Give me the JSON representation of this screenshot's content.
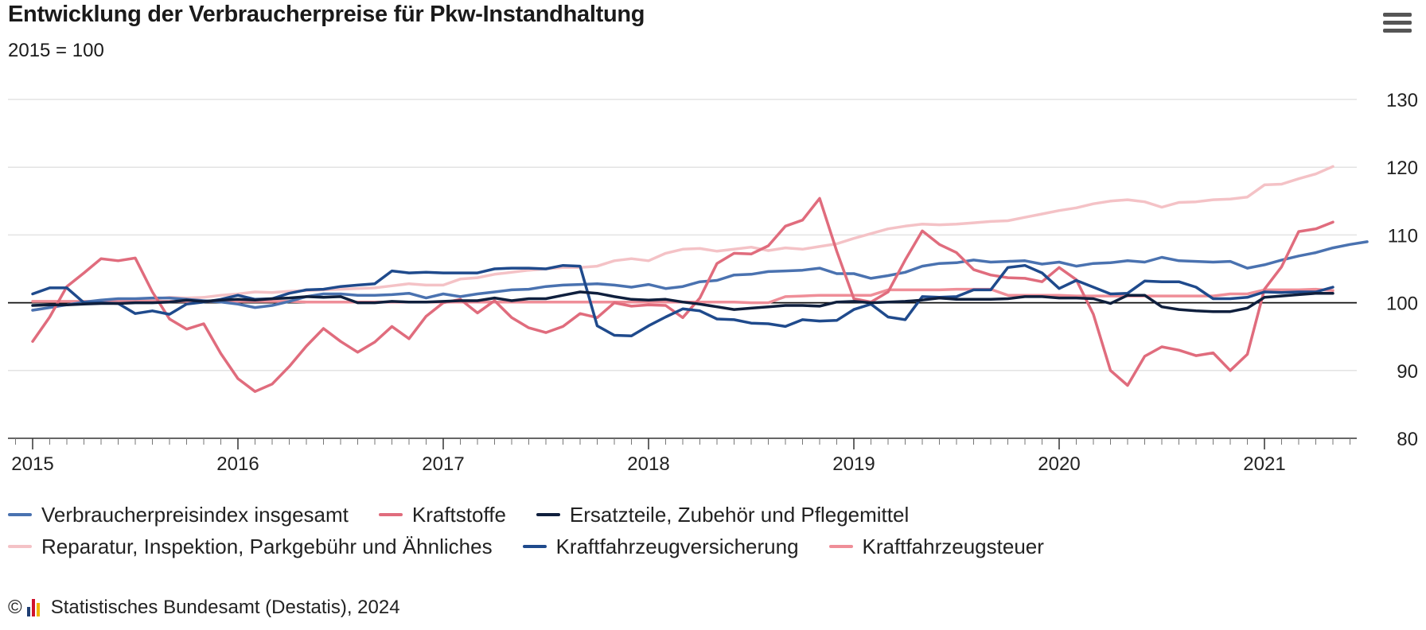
{
  "header": {
    "title": "Entwicklung der Verbraucherpreise für Pkw-Instandhaltung",
    "subtitle": "2015 = 100",
    "menu_icon": "hamburger-menu-icon"
  },
  "footer": {
    "copyright_symbol": "©",
    "logo_icon": "destatis-logo-icon",
    "source": "Statistisches Bundesamt (Destatis), 2024"
  },
  "chart_data": {
    "type": "line",
    "title": "Entwicklung der Verbraucherpreise für Pkw-Instandhaltung",
    "subtitle": "2015 = 100",
    "x_type": "monthly",
    "x_start": "2015-01",
    "x_ticks": [
      "2015",
      "2016",
      "2017",
      "2018",
      "2019",
      "2020",
      "2021"
    ],
    "y_ticks": [
      80,
      90,
      100,
      110,
      120,
      130
    ],
    "ylim": [
      80,
      130
    ],
    "y_axis_position": "right",
    "reference_line": 100,
    "grid": "horizontal",
    "legend_position": "bottom",
    "series": [
      {
        "name": "Verbraucherpreisindex insgesamt",
        "color": "#4a72b0",
        "values": [
          98.9,
          99.3,
          99.7,
          100.1,
          100.4,
          100.6,
          100.6,
          100.7,
          100.7,
          100.5,
          100.3,
          100.1,
          99.8,
          99.3,
          99.6,
          100.2,
          100.9,
          101.3,
          101.3,
          101.1,
          101.1,
          101.2,
          101.4,
          100.7,
          101.3,
          100.9,
          101.3,
          101.6,
          101.9,
          102.0,
          102.4,
          102.6,
          102.7,
          102.8,
          102.6,
          102.3,
          102.7,
          102.1,
          102.4,
          103.1,
          103.3,
          104.1,
          104.2,
          104.6,
          104.7,
          104.8,
          105.1,
          104.3,
          104.3,
          103.6,
          104.0,
          104.5,
          105.4,
          105.8,
          105.9,
          106.3,
          106.0,
          106.1,
          106.2,
          105.7,
          106.0,
          105.4,
          105.8,
          105.9,
          106.2,
          106.0,
          106.7,
          106.2,
          106.1,
          106.0,
          106.1,
          105.1,
          105.6,
          106.3,
          106.9,
          107.4,
          108.1,
          108.6,
          109.0
        ]
      },
      {
        "name": "Kraftstoffe",
        "color": "#e06c7d",
        "values": [
          94.3,
          97.9,
          102.4,
          104.4,
          106.5,
          106.2,
          106.6,
          101.6,
          97.6,
          96.1,
          96.9,
          92.5,
          88.8,
          86.9,
          88.0,
          90.6,
          93.6,
          96.2,
          94.3,
          92.7,
          94.2,
          96.5,
          94.7,
          98.0,
          100.0,
          100.5,
          98.5,
          100.3,
          97.8,
          96.3,
          95.6,
          96.5,
          98.4,
          97.8,
          100.0,
          99.5,
          99.7,
          99.6,
          97.8,
          100.7,
          105.8,
          107.3,
          107.2,
          108.4,
          111.3,
          112.2,
          115.4,
          107.6,
          100.6,
          100.1,
          101.6,
          106.3,
          110.6,
          108.6,
          107.4,
          104.9,
          104.1,
          103.7,
          103.6,
          103.1,
          105.2,
          103.4,
          98.3,
          90.0,
          87.8,
          92.1,
          93.5,
          93.0,
          92.2,
          92.6,
          90.0,
          92.4,
          102.0,
          105.3,
          110.5,
          110.9,
          111.9
        ]
      },
      {
        "name": "Ersatzteile, Zubehör und Pflegemittel",
        "color": "#0f1f3d",
        "values": [
          99.6,
          99.7,
          99.7,
          99.8,
          99.9,
          99.9,
          100.0,
          100.0,
          100.1,
          100.4,
          100.2,
          100.4,
          100.5,
          100.4,
          100.6,
          100.7,
          100.9,
          100.8,
          100.9,
          100.0,
          100.0,
          100.2,
          100.1,
          100.1,
          100.2,
          100.3,
          100.3,
          100.7,
          100.3,
          100.6,
          100.6,
          101.1,
          101.6,
          101.4,
          100.9,
          100.5,
          100.4,
          100.5,
          100.1,
          99.8,
          99.4,
          99.0,
          99.2,
          99.4,
          99.6,
          99.6,
          99.5,
          100.1,
          100.2,
          100.0,
          100.1,
          100.2,
          100.4,
          100.7,
          100.5,
          100.5,
          100.5,
          100.6,
          100.9,
          100.9,
          100.7,
          100.7,
          100.6,
          99.9,
          101.1,
          101.1,
          99.4,
          99.0,
          98.8,
          98.7,
          98.7,
          99.2,
          100.8,
          101.0,
          101.2,
          101.4,
          101.4
        ]
      },
      {
        "name": "Reparatur, Inspektion, Parkgebühr und Ähnliches",
        "color": "#f4c2c6",
        "values": [
          98.9,
          99.3,
          99.7,
          100.0,
          100.2,
          100.3,
          100.4,
          100.5,
          100.8,
          100.7,
          100.8,
          101.1,
          101.3,
          101.6,
          101.5,
          101.7,
          101.8,
          101.9,
          102.0,
          102.1,
          102.2,
          102.5,
          102.8,
          102.6,
          102.6,
          103.5,
          103.7,
          104.2,
          104.5,
          104.8,
          105.0,
          105.2,
          105.2,
          105.4,
          106.2,
          106.5,
          106.2,
          107.3,
          107.9,
          108.0,
          107.6,
          107.9,
          108.2,
          107.7,
          108.1,
          107.9,
          108.3,
          108.7,
          109.5,
          110.2,
          110.9,
          111.3,
          111.6,
          111.5,
          111.6,
          111.8,
          112.0,
          112.1,
          112.6,
          113.1,
          113.6,
          114.0,
          114.6,
          115.0,
          115.2,
          114.9,
          114.1,
          114.8,
          114.9,
          115.2,
          115.3,
          115.6,
          117.4,
          117.5,
          118.3,
          119.0,
          120.1
        ]
      },
      {
        "name": "Kraftfahrzeugversicherung",
        "color": "#1f4a8c",
        "values": [
          101.3,
          102.2,
          102.2,
          100.0,
          100.0,
          99.9,
          98.4,
          98.8,
          98.3,
          99.8,
          100.1,
          100.5,
          101.1,
          100.5,
          100.6,
          101.4,
          101.9,
          102.0,
          102.4,
          102.6,
          102.8,
          104.7,
          104.4,
          104.5,
          104.4,
          104.4,
          104.4,
          105.0,
          105.1,
          105.1,
          105.0,
          105.5,
          105.4,
          96.6,
          95.2,
          95.1,
          96.6,
          97.9,
          99.1,
          98.8,
          97.6,
          97.5,
          97.0,
          96.9,
          96.5,
          97.5,
          97.3,
          97.4,
          99.0,
          99.8,
          97.9,
          97.5,
          100.9,
          100.8,
          100.9,
          101.9,
          101.9,
          105.2,
          105.5,
          104.4,
          102.1,
          103.3,
          102.3,
          101.3,
          101.4,
          103.2,
          103.1,
          103.1,
          102.3,
          100.6,
          100.6,
          100.8,
          101.6,
          101.5,
          101.6,
          101.6,
          102.3
        ]
      },
      {
        "name": "Kraftfahrzeugsteuer",
        "color": "#ef8e98",
        "values": [
          100.2,
          100.2,
          100.2,
          100.2,
          100.2,
          100.2,
          100.2,
          100.2,
          100.2,
          100.2,
          100.2,
          100.2,
          100.2,
          100.2,
          100.2,
          100.2,
          100.1,
          100.1,
          100.1,
          100.1,
          100.1,
          100.1,
          100.1,
          100.1,
          100.1,
          100.1,
          100.1,
          100.1,
          100.1,
          100.1,
          100.1,
          100.1,
          100.1,
          100.1,
          100.1,
          100.1,
          100.1,
          100.1,
          100.1,
          100.1,
          100.1,
          100.1,
          100.0,
          100.0,
          100.9,
          101.0,
          101.1,
          101.1,
          101.1,
          101.1,
          101.9,
          101.9,
          101.9,
          101.9,
          102.0,
          102.0,
          102.0,
          101.1,
          101.1,
          101.1,
          101.1,
          101.0,
          101.0,
          101.0,
          101.0,
          101.0,
          101.0,
          101.0,
          101.0,
          101.0,
          101.3,
          101.3,
          101.9,
          101.9,
          101.9,
          102.0,
          101.8
        ]
      }
    ]
  }
}
